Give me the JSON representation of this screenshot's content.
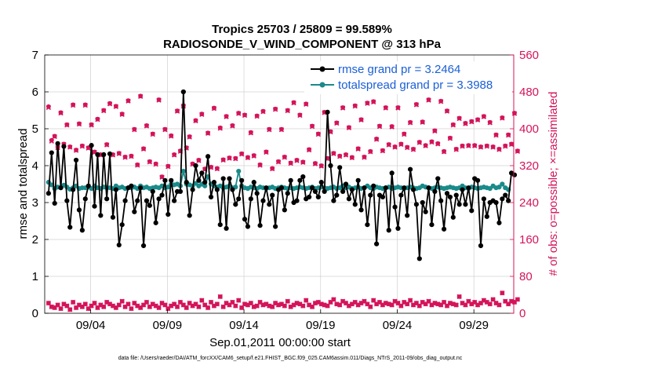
{
  "chart_data": {
    "type": "line",
    "title_line1": "Tropics 25703 / 25809 = 99.589%",
    "title_line2": "RADIOSONDE_V_WIND_COMPONENT @ 313 hPa",
    "xlabel": "Sep.01,2011 00:00:00 start",
    "ylabel_left": "rmse and totalspread",
    "ylabel_right": "# of obs: o=possible; ×=assimilated",
    "footer": "data file: /Users/raeder/DAI/ATM_forcXX/CAM6_setup/f.e21.FHIST_BGC.f09_025.CAM6assim.011/Diags_NTrS_2011-09/obs_diag_output.nc",
    "xlim": [
      1,
      31.6
    ],
    "ylim_left": [
      0,
      7
    ],
    "ylim_right": [
      0,
      560
    ],
    "yticks_left": [
      "0",
      "1",
      "2",
      "3",
      "4",
      "5",
      "6",
      "7"
    ],
    "yticks_right": [
      "0",
      "80",
      "160",
      "240",
      "320",
      "400",
      "480",
      "560"
    ],
    "xticks": [
      {
        "day": 4,
        "label": "09/04"
      },
      {
        "day": 9,
        "label": "09/09"
      },
      {
        "day": 14,
        "label": "09/14"
      },
      {
        "day": 19,
        "label": "09/19"
      },
      {
        "day": 24,
        "label": "09/24"
      },
      {
        "day": 29,
        "label": "09/29"
      }
    ],
    "colors": {
      "rmse": "#000000",
      "spread": "#1a8a8a",
      "obs": "#d4145a",
      "legend_text": "#1a5fd6",
      "axis_right": "#d4145a",
      "grid": "#d0d0d0"
    },
    "series": [
      {
        "name": "rmse grand pr = 3.2464",
        "values": [
          3.25,
          4.35,
          2.98,
          4.6,
          3.4,
          4.52,
          3.05,
          2.33,
          3.35,
          4.15,
          2.8,
          2.25,
          3.1,
          3.45,
          4.55,
          2.9,
          4.3,
          2.65,
          4.3,
          3.1,
          4.32,
          2.6,
          3.35,
          1.85,
          2.4,
          3.05,
          3.4,
          3.45,
          2.75,
          3.05,
          3.4,
          1.83,
          3.05,
          2.92,
          3.3,
          2.45,
          3.1,
          3.2,
          3.6,
          2.68,
          3.6,
          3.05,
          3.3,
          3.3,
          6.0,
          3.55,
          2.65,
          3.35,
          4.0,
          3.6,
          3.8,
          3.55,
          4.25,
          3.15,
          3.55,
          3.35,
          2.4,
          3.65,
          2.3,
          3.65,
          3.35,
          2.95,
          3.1,
          3.6,
          2.55,
          2.35,
          3.1,
          3.55,
          3.25,
          2.38,
          3.05,
          3.4,
          2.95,
          3.2,
          2.35,
          3.35,
          3.4,
          2.8,
          3.25,
          3.6,
          3.0,
          3.05,
          3.6,
          3.7,
          3.1,
          3.15,
          3.4,
          3.3,
          3.15,
          3.55,
          3.3,
          5.45,
          4.0,
          3.05,
          3.2,
          3.95,
          3.3,
          3.5,
          3.1,
          3.35,
          2.95,
          3.6,
          2.8,
          3.4,
          2.4,
          3.2,
          3.45,
          1.88,
          3.2,
          3.15,
          3.4,
          2.25,
          3.8,
          2.88,
          2.3,
          3.2,
          3.4,
          2.65,
          3.9,
          3.35,
          2.95,
          1.48,
          3.0,
          2.75,
          3.4,
          2.4,
          3.3,
          3.65,
          3.05,
          2.28,
          3.25,
          3.15,
          2.6,
          3.2,
          2.95,
          3.35,
          2.95,
          3.4,
          2.78,
          3.65,
          3.6,
          1.83,
          3.1,
          2.62,
          3.0,
          3.05,
          3.0,
          2.45,
          3.1,
          3.2,
          3.05,
          3.8,
          3.75
        ]
      },
      {
        "name": "totalspread grand pr = 3.3988",
        "values": [
          3.55,
          3.48,
          3.38,
          3.42,
          3.4,
          3.47,
          3.42,
          3.36,
          3.4,
          3.45,
          3.38,
          3.4,
          3.4,
          3.42,
          3.38,
          3.45,
          3.4,
          3.38,
          3.42,
          3.4,
          3.4,
          3.38,
          3.45,
          3.4,
          3.42,
          3.38,
          3.4,
          3.4,
          3.42,
          3.38,
          3.45,
          3.4,
          3.42,
          3.38,
          3.4,
          3.42,
          3.4,
          3.45,
          3.4,
          3.42,
          3.5,
          3.48,
          3.5,
          3.45,
          3.85,
          3.5,
          3.48,
          3.45,
          3.52,
          3.45,
          3.5,
          3.45,
          3.7,
          3.5,
          3.45,
          3.42,
          3.45,
          3.4,
          3.42,
          3.45,
          3.4,
          3.42,
          3.85,
          3.45,
          3.4,
          3.38,
          3.42,
          3.4,
          3.38,
          3.42,
          3.4,
          3.38,
          3.4,
          3.42,
          3.38,
          3.4,
          3.42,
          3.4,
          3.38,
          3.4,
          3.38,
          3.4,
          3.42,
          3.4,
          3.38,
          3.4,
          3.42,
          3.38,
          3.4,
          3.42,
          3.4,
          3.38,
          3.4,
          3.42,
          3.38,
          3.4,
          3.45,
          3.4,
          3.42,
          3.38,
          3.4,
          3.42,
          3.38,
          3.4,
          3.45,
          3.4,
          3.38,
          3.42,
          3.4,
          3.38,
          3.4,
          3.42,
          3.38,
          3.4,
          3.42,
          3.4,
          3.38,
          3.4,
          3.42,
          3.4,
          3.38,
          3.4,
          3.45,
          3.42,
          3.4,
          3.38,
          3.4,
          3.42,
          3.4,
          3.38,
          3.4,
          3.42,
          3.4,
          3.38,
          3.4,
          3.45,
          3.4,
          3.38,
          3.42,
          3.4,
          3.38,
          3.4,
          3.42,
          3.4,
          3.38,
          3.45,
          3.4,
          3.42,
          3.5,
          3.4,
          3.35
        ]
      }
    ],
    "obs_possible": [
      448,
      375,
      384,
      360,
      435,
      367,
      409,
      361,
      452,
      354,
      411,
      363,
      452,
      359,
      409,
      350,
      421,
      344,
      440,
      366,
      455,
      344,
      449,
      347,
      432,
      339,
      461,
      341,
      399,
      322,
      471,
      357,
      407,
      329,
      389,
      324,
      463,
      296,
      399,
      319,
      385,
      344,
      439,
      352,
      450,
      359,
      383,
      324,
      418,
      332,
      432,
      313,
      391,
      317,
      445,
      314,
      402,
      333,
      427,
      337,
      407,
      336,
      434,
      346,
      430,
      338,
      392,
      342,
      428,
      322,
      438,
      350,
      399,
      314,
      443,
      329,
      399,
      339,
      440,
      326,
      457,
      332,
      430,
      328,
      454,
      355,
      406,
      325,
      389,
      320,
      436,
      336,
      394,
      347,
      413,
      341,
      446,
      344,
      403,
      338,
      450,
      357,
      420,
      339,
      456,
      351,
      459,
      378,
      406,
      353,
      446,
      366,
      405,
      361,
      446,
      367,
      389,
      360,
      414,
      356,
      453,
      371,
      415,
      364,
      463,
      372,
      396,
      368,
      460,
      351,
      439,
      380,
      409,
      356,
      423,
      363,
      412,
      364,
      416,
      364,
      420,
      361,
      427,
      363,
      414,
      361,
      387,
      356,
      424,
      363,
      387,
      367,
      434,
      352
    ],
    "obs_assimilated": [
      446,
      373,
      383,
      359,
      434,
      366,
      408,
      360,
      451,
      353,
      410,
      362,
      451,
      358,
      408,
      349,
      420,
      343,
      439,
      365,
      454,
      343,
      448,
      346,
      431,
      338,
      460,
      340,
      398,
      321,
      470,
      356,
      406,
      328,
      388,
      323,
      462,
      295,
      398,
      318,
      384,
      343,
      438,
      351,
      449,
      358,
      382,
      323,
      417,
      331,
      431,
      312,
      390,
      316,
      444,
      313,
      401,
      332,
      426,
      336,
      406,
      335,
      433,
      345,
      429,
      337,
      391,
      341,
      427,
      321,
      437,
      349,
      398,
      313,
      442,
      328,
      398,
      338,
      439,
      325,
      456,
      331,
      429,
      327,
      453,
      354,
      405,
      324,
      388,
      319,
      435,
      335,
      393,
      346,
      412,
      340,
      445,
      343,
      402,
      337,
      449,
      356,
      419,
      338,
      455,
      350,
      458,
      377,
      405,
      352,
      445,
      365,
      404,
      360,
      445,
      366,
      388,
      359,
      413,
      355,
      452,
      370,
      414,
      363,
      462,
      371,
      395,
      367,
      459,
      350,
      438,
      379,
      408,
      355,
      422,
      362,
      411,
      363,
      415,
      363,
      419,
      360,
      426,
      362,
      413,
      360,
      386,
      355,
      423,
      362,
      386,
      366,
      433,
      351
    ],
    "obs_low_possible": [
      22,
      14,
      12,
      18,
      10,
      20,
      16,
      8,
      24,
      12,
      18,
      14,
      20,
      10,
      16,
      22,
      12,
      18,
      14,
      24,
      20,
      16,
      12,
      18,
      26,
      14,
      20,
      10,
      22,
      16,
      12,
      18,
      24,
      14,
      20,
      16,
      12,
      22,
      18,
      10,
      16,
      20,
      14,
      24,
      18,
      12,
      22,
      16,
      20,
      14,
      28,
      18,
      12,
      24,
      16,
      20,
      36,
      14,
      22,
      18,
      24,
      16,
      28,
      12,
      20,
      18,
      22,
      14,
      16,
      24,
      18,
      20,
      16,
      14,
      22,
      18,
      20,
      16,
      26,
      14,
      18,
      22,
      20,
      16,
      28,
      18,
      14,
      22,
      24,
      20,
      18,
      16,
      24,
      30,
      20,
      18,
      26,
      22,
      16,
      20,
      24,
      18,
      22,
      26,
      20,
      14,
      28,
      20,
      24,
      18,
      22,
      20,
      18,
      26,
      22,
      16,
      24,
      20,
      28,
      18,
      22,
      16,
      24,
      20,
      26,
      18,
      22,
      20,
      18,
      24,
      16,
      22,
      20,
      18,
      36,
      22,
      18,
      26,
      20,
      24,
      18,
      22,
      28,
      24,
      20,
      30,
      22,
      18,
      44,
      26,
      20,
      26,
      24,
      30
    ]
  },
  "legend": {
    "rmse_label": "rmse grand pr = 3.2464",
    "spread_label": "totalspread grand pr = 3.3988"
  }
}
